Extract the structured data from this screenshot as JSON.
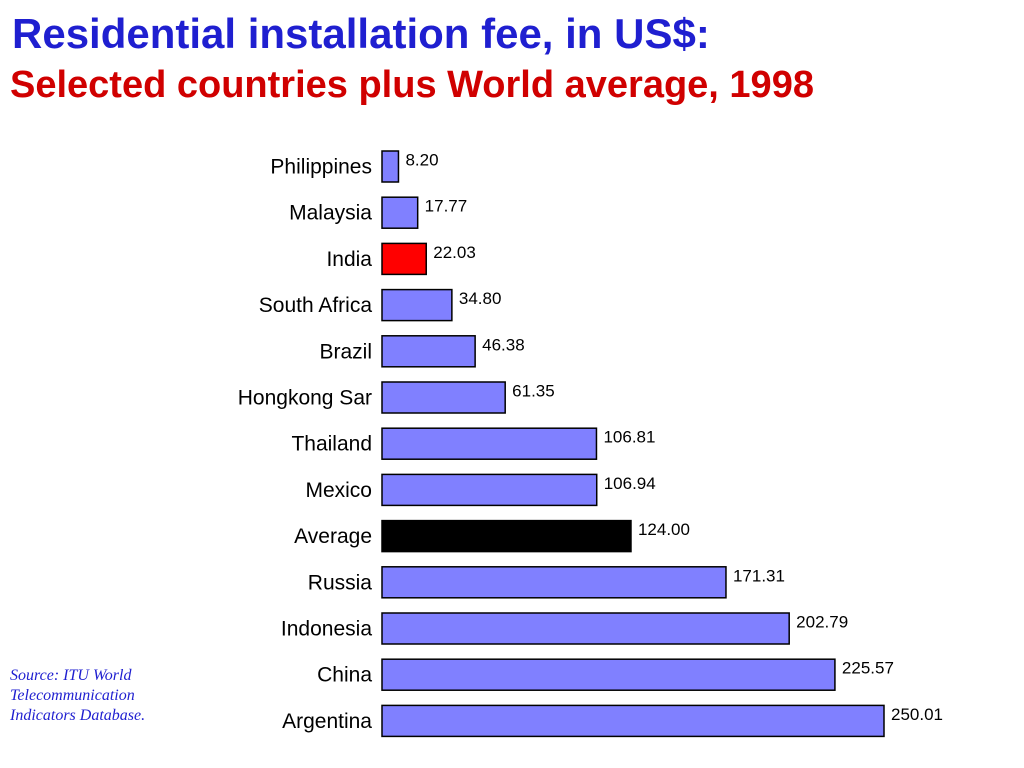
{
  "title": "Residential installation fee, in US$:",
  "subtitle": "Selected countries plus World average, 1998",
  "source": {
    "line1": "Source: ITU World",
    "line2": "Telecommunication",
    "line3": "Indicators Database."
  },
  "colors": {
    "bar_default": "#8080ff",
    "bar_highlight": "#ff0000",
    "bar_average": "#000000",
    "title": "#1f1fd0",
    "subtitle": "#d00000"
  },
  "chart_data": {
    "type": "bar",
    "orientation": "horizontal",
    "categories": [
      "Philippines",
      "Malaysia",
      "India",
      "South Africa",
      "Brazil",
      "Hongkong Sar",
      "Thailand",
      "Mexico",
      "Average",
      "Russia",
      "Indonesia",
      "China",
      "Argentina"
    ],
    "values": [
      8.2,
      17.77,
      22.03,
      34.8,
      46.38,
      61.35,
      106.81,
      106.94,
      124.0,
      171.31,
      202.79,
      225.57,
      250.01
    ],
    "value_labels": [
      "8.20",
      "17.77",
      "22.03",
      "34.80",
      "46.38",
      "61.35",
      "106.81",
      "106.94",
      "124.00",
      "171.31",
      "202.79",
      "225.57",
      "250.01"
    ],
    "highlight": {
      "India": "bar_highlight",
      "Average": "bar_average"
    },
    "xlim": [
      0,
      250.01
    ],
    "grid": false,
    "legend": "none"
  }
}
